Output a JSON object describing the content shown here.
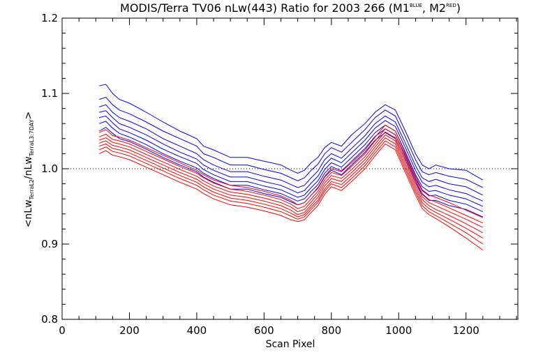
{
  "chart_data": {
    "type": "line",
    "title_parts": {
      "main": "MODIS/Terra TV06 nLw(443) Ratio for 2003 266 (M1",
      "sup1": "BLUE",
      "mid": ", M2",
      "sup2": "RED",
      "end": ")"
    },
    "xlabel": "Scan Pixel",
    "ylabel_parts": {
      "a": "<nLw",
      "sub1": "TerraL2",
      "b": "/nLw",
      "sub2": "TerraL3:7DAY",
      "c": ">"
    },
    "xlim": [
      0,
      1354
    ],
    "ylim": [
      0.8,
      1.2
    ],
    "x_ticks": [
      "0",
      "200",
      "400",
      "600",
      "800",
      "1000",
      "1200"
    ],
    "y_ticks": [
      "0.8",
      "0.9",
      "1.0",
      "1.1",
      "1.2"
    ],
    "reference_line": 1.0,
    "colors": {
      "M1": "#0000ff",
      "M2": "#ff0000",
      "reference": "#000000"
    },
    "x": [
      110,
      130,
      150,
      170,
      200,
      250,
      300,
      350,
      400,
      420,
      450,
      500,
      550,
      600,
      650,
      680,
      700,
      720,
      740,
      760,
      780,
      800,
      830,
      860,
      900,
      930,
      960,
      990,
      1020,
      1050,
      1070,
      1090,
      1110,
      1150,
      1200,
      1250
    ],
    "series": [
      {
        "group": "M1",
        "values": [
          1.11,
          1.112,
          1.1,
          1.092,
          1.087,
          1.075,
          1.062,
          1.05,
          1.04,
          1.03,
          1.025,
          1.015,
          1.015,
          1.01,
          1.005,
          0.998,
          0.994,
          0.998,
          1.008,
          1.015,
          1.028,
          1.035,
          1.03,
          1.045,
          1.06,
          1.075,
          1.085,
          1.078,
          1.05,
          1.02,
          1.005,
          1.0,
          1.005,
          1.0,
          0.998,
          0.985
        ]
      },
      {
        "group": "M1",
        "values": [
          1.092,
          1.095,
          1.085,
          1.078,
          1.073,
          1.062,
          1.05,
          1.04,
          1.03,
          1.02,
          1.015,
          1.005,
          1.005,
          0.999,
          0.994,
          0.988,
          0.984,
          0.988,
          0.998,
          1.006,
          1.02,
          1.028,
          1.022,
          1.035,
          1.052,
          1.068,
          1.078,
          1.07,
          1.042,
          1.012,
          0.996,
          0.992,
          0.995,
          0.99,
          0.986,
          0.975
        ]
      },
      {
        "group": "M1",
        "values": [
          1.082,
          1.085,
          1.075,
          1.068,
          1.063,
          1.053,
          1.04,
          1.03,
          1.02,
          1.012,
          1.005,
          0.996,
          0.996,
          0.99,
          0.985,
          0.979,
          0.975,
          0.978,
          0.988,
          0.997,
          1.012,
          1.02,
          1.014,
          1.027,
          1.044,
          1.06,
          1.07,
          1.062,
          1.034,
          1.004,
          0.988,
          0.983,
          0.986,
          0.98,
          0.976,
          0.965
        ]
      },
      {
        "group": "M1",
        "values": [
          1.075,
          1.077,
          1.068,
          1.06,
          1.055,
          1.045,
          1.033,
          1.022,
          1.013,
          1.005,
          0.998,
          0.989,
          0.989,
          0.983,
          0.978,
          0.972,
          0.968,
          0.971,
          0.981,
          0.99,
          1.005,
          1.014,
          1.008,
          1.021,
          1.038,
          1.054,
          1.064,
          1.056,
          1.028,
          0.998,
          0.982,
          0.976,
          0.978,
          0.972,
          0.967,
          0.957
        ]
      },
      {
        "group": "M1",
        "values": [
          1.068,
          1.07,
          1.061,
          1.053,
          1.048,
          1.038,
          1.026,
          1.016,
          1.007,
          0.999,
          0.992,
          0.983,
          0.983,
          0.977,
          0.972,
          0.966,
          0.962,
          0.965,
          0.975,
          0.984,
          0.999,
          1.008,
          1.002,
          1.015,
          1.032,
          1.048,
          1.058,
          1.05,
          1.022,
          0.992,
          0.976,
          0.97,
          0.971,
          0.965,
          0.96,
          0.95
        ]
      },
      {
        "group": "M1",
        "values": [
          1.06,
          1.063,
          1.054,
          1.047,
          1.042,
          1.032,
          1.02,
          1.01,
          1.001,
          0.994,
          0.987,
          0.978,
          0.978,
          0.972,
          0.967,
          0.961,
          0.957,
          0.96,
          0.97,
          0.979,
          0.994,
          1.003,
          0.997,
          1.01,
          1.027,
          1.043,
          1.053,
          1.045,
          1.017,
          0.987,
          0.971,
          0.964,
          0.965,
          0.958,
          0.953,
          0.943
        ]
      },
      {
        "group": "M1",
        "values": [
          1.05,
          1.055,
          1.047,
          1.04,
          1.036,
          1.026,
          1.015,
          1.005,
          0.996,
          0.989,
          0.982,
          0.973,
          0.973,
          0.967,
          0.962,
          0.956,
          0.952,
          0.955,
          0.965,
          0.974,
          0.989,
          0.998,
          0.992,
          1.005,
          1.022,
          1.038,
          1.048,
          1.04,
          1.012,
          0.982,
          0.966,
          0.958,
          0.958,
          0.951,
          0.946,
          0.936
        ]
      },
      {
        "group": "M2",
        "values": [
          1.048,
          1.052,
          1.044,
          1.042,
          1.038,
          1.028,
          1.018,
          1.008,
          0.998,
          0.992,
          0.985,
          0.978,
          0.975,
          0.97,
          0.964,
          0.958,
          0.952,
          0.955,
          0.965,
          0.975,
          0.99,
          1.0,
          0.996,
          1.008,
          1.025,
          1.042,
          1.058,
          1.05,
          1.02,
          0.99,
          0.972,
          0.965,
          0.962,
          0.955,
          0.945,
          0.935
        ]
      },
      {
        "group": "M2",
        "values": [
          1.042,
          1.046,
          1.039,
          1.037,
          1.033,
          1.023,
          1.013,
          1.003,
          0.994,
          0.988,
          0.981,
          0.973,
          0.97,
          0.965,
          0.959,
          0.953,
          0.947,
          0.95,
          0.96,
          0.97,
          0.985,
          0.995,
          0.991,
          1.003,
          1.02,
          1.037,
          1.053,
          1.045,
          1.015,
          0.985,
          0.967,
          0.959,
          0.956,
          0.948,
          0.938,
          0.928
        ]
      },
      {
        "group": "M2",
        "values": [
          1.038,
          1.041,
          1.035,
          1.033,
          1.029,
          1.019,
          1.009,
          0.999,
          0.99,
          0.984,
          0.977,
          0.969,
          0.966,
          0.961,
          0.955,
          0.949,
          0.943,
          0.946,
          0.956,
          0.966,
          0.981,
          0.991,
          0.987,
          0.999,
          1.016,
          1.033,
          1.049,
          1.041,
          1.011,
          0.981,
          0.963,
          0.955,
          0.951,
          0.943,
          0.933,
          0.922
        ]
      },
      {
        "group": "M2",
        "values": [
          1.034,
          1.037,
          1.031,
          1.029,
          1.025,
          1.015,
          1.005,
          0.995,
          0.986,
          0.98,
          0.973,
          0.965,
          0.962,
          0.957,
          0.951,
          0.945,
          0.939,
          0.942,
          0.952,
          0.962,
          0.977,
          0.987,
          0.983,
          0.995,
          1.012,
          1.029,
          1.045,
          1.037,
          1.007,
          0.977,
          0.959,
          0.951,
          0.946,
          0.938,
          0.927,
          0.915
        ]
      },
      {
        "group": "M2",
        "values": [
          1.03,
          1.033,
          1.027,
          1.025,
          1.021,
          1.011,
          1.001,
          0.991,
          0.982,
          0.976,
          0.969,
          0.961,
          0.958,
          0.953,
          0.947,
          0.941,
          0.936,
          0.939,
          0.949,
          0.958,
          0.973,
          0.983,
          0.979,
          0.991,
          1.008,
          1.025,
          1.041,
          1.033,
          1.003,
          0.973,
          0.955,
          0.947,
          0.942,
          0.933,
          0.921,
          0.908
        ]
      },
      {
        "group": "M2",
        "values": [
          1.025,
          1.029,
          1.023,
          1.021,
          1.017,
          1.007,
          0.997,
          0.987,
          0.978,
          0.972,
          0.965,
          0.957,
          0.954,
          0.949,
          0.943,
          0.937,
          0.933,
          0.936,
          0.946,
          0.955,
          0.97,
          0.98,
          0.975,
          0.987,
          1.004,
          1.021,
          1.037,
          1.029,
          0.999,
          0.969,
          0.951,
          0.943,
          0.938,
          0.928,
          0.915,
          0.9
        ]
      },
      {
        "group": "M2",
        "values": [
          1.02,
          1.024,
          1.018,
          1.016,
          1.012,
          1.002,
          0.992,
          0.982,
          0.973,
          0.967,
          0.96,
          0.952,
          0.949,
          0.944,
          0.938,
          0.932,
          0.93,
          0.932,
          0.942,
          0.951,
          0.966,
          0.976,
          0.971,
          0.983,
          1.0,
          1.017,
          1.033,
          1.025,
          0.995,
          0.965,
          0.947,
          0.939,
          0.934,
          0.923,
          0.908,
          0.892
        ]
      }
    ]
  }
}
